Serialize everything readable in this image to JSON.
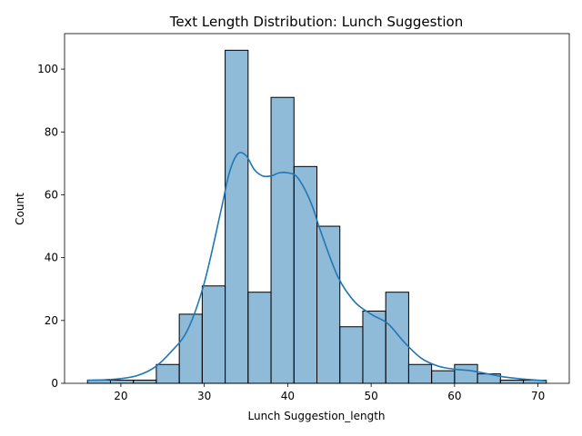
{
  "chart_data": {
    "type": "bar",
    "title": "Text Length Distribution: Lunch Suggestion",
    "xlabel": "Lunch Suggestion_length",
    "ylabel": "Count",
    "xlim": [
      13.25,
      73.75
    ],
    "ylim": [
      0,
      111.3
    ],
    "xticks": [
      20,
      30,
      40,
      50,
      60,
      70
    ],
    "yticks": [
      0,
      20,
      40,
      60,
      80,
      100
    ],
    "grid": false,
    "bar_color": "#1f77b4",
    "bar_fill_opacity": 0.5,
    "bin_edges": [
      16,
      18.75,
      21.5,
      24.25,
      27,
      29.75,
      32.5,
      35.25,
      38,
      40.75,
      43.5,
      46.25,
      49,
      51.75,
      54.5,
      57.25,
      60,
      62.75,
      65.5,
      68.25,
      71
    ],
    "counts": [
      1,
      1,
      1,
      6,
      22,
      31,
      106,
      29,
      91,
      69,
      50,
      18,
      23,
      29,
      6,
      4,
      6,
      3,
      1,
      1
    ],
    "kde": {
      "x": [
        16,
        18,
        20,
        22,
        24,
        26,
        28,
        30,
        32,
        33,
        34,
        35,
        36,
        37,
        38,
        39,
        40,
        41,
        42,
        43,
        44,
        46,
        48,
        50,
        52,
        54,
        56,
        58,
        60,
        62,
        64,
        66,
        68,
        71
      ],
      "y": [
        1,
        1.1,
        1.5,
        2.5,
        5,
        10,
        17,
        32,
        55,
        67,
        73,
        72.5,
        68,
        66,
        66,
        67,
        67,
        66,
        62,
        56,
        48,
        34,
        26,
        22,
        19,
        13,
        8,
        5.5,
        4.5,
        4,
        3,
        2,
        1.4,
        0.8
      ]
    }
  }
}
